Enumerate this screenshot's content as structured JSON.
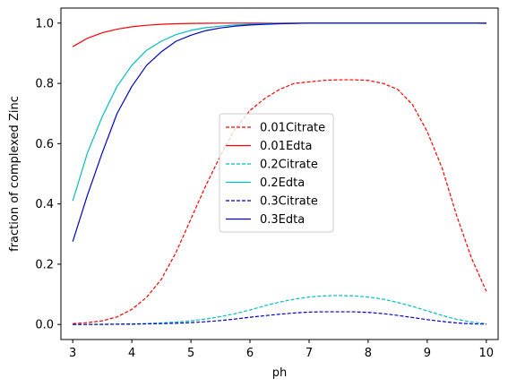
{
  "chart_data": {
    "type": "line",
    "xlabel": "ph",
    "ylabel": "fraction of complexed Zinc",
    "xlim": [
      2.8,
      10.2
    ],
    "ylim": [
      -0.05,
      1.05
    ],
    "xticks": [
      3,
      4,
      5,
      6,
      7,
      8,
      9,
      10
    ],
    "yticks": [
      0.0,
      0.2,
      0.4,
      0.6,
      0.8,
      1.0
    ],
    "xtick_labels": [
      "3",
      "4",
      "5",
      "6",
      "7",
      "8",
      "9",
      "10"
    ],
    "ytick_labels": [
      "0.0",
      "0.2",
      "0.4",
      "0.6",
      "0.8",
      "1.0"
    ],
    "grid": false,
    "legend_position": "center",
    "x": [
      3.0,
      3.25,
      3.5,
      3.75,
      4.0,
      4.25,
      4.5,
      4.75,
      5.0,
      5.25,
      5.5,
      5.75,
      6.0,
      6.25,
      6.5,
      6.75,
      7.0,
      7.25,
      7.5,
      7.75,
      8.0,
      8.25,
      8.5,
      8.75,
      9.0,
      9.25,
      9.5,
      9.75,
      10.0
    ],
    "series": [
      {
        "name": "0.01Citrate",
        "color": "#ff0000",
        "dash": true,
        "values": [
          0.003,
          0.006,
          0.012,
          0.025,
          0.05,
          0.09,
          0.15,
          0.24,
          0.35,
          0.46,
          0.56,
          0.65,
          0.71,
          0.75,
          0.78,
          0.8,
          0.805,
          0.81,
          0.812,
          0.812,
          0.81,
          0.8,
          0.78,
          0.73,
          0.64,
          0.52,
          0.36,
          0.22,
          0.11
        ]
      },
      {
        "name": "0.01Edta",
        "color": "#ff0000",
        "dash": false,
        "values": [
          0.922,
          0.95,
          0.968,
          0.98,
          0.988,
          0.993,
          0.996,
          0.998,
          0.999,
          0.9995,
          1.0,
          1.0,
          1.0,
          1.0,
          1.0,
          1.0,
          1.0,
          1.0,
          1.0,
          1.0,
          1.0,
          1.0,
          1.0,
          1.0,
          1.0,
          1.0,
          1.0,
          1.0,
          0.999
        ]
      },
      {
        "name": "0.2Citrate",
        "color": "#00bfbf",
        "dash": true,
        "values": [
          0.0,
          0.0,
          0.001,
          0.001,
          0.002,
          0.003,
          0.005,
          0.008,
          0.012,
          0.018,
          0.026,
          0.036,
          0.048,
          0.062,
          0.074,
          0.084,
          0.091,
          0.095,
          0.096,
          0.095,
          0.091,
          0.084,
          0.073,
          0.06,
          0.045,
          0.03,
          0.017,
          0.008,
          0.003
        ]
      },
      {
        "name": "0.2Edta",
        "color": "#00bfbf",
        "dash": false,
        "values": [
          0.41,
          0.57,
          0.69,
          0.79,
          0.86,
          0.91,
          0.94,
          0.962,
          0.976,
          0.985,
          0.99,
          0.994,
          0.996,
          0.998,
          0.999,
          0.9995,
          1.0,
          1.0,
          1.0,
          1.0,
          1.0,
          1.0,
          1.0,
          1.0,
          1.0,
          1.0,
          1.0,
          1.0,
          1.0
        ]
      },
      {
        "name": "0.3Citrate",
        "color": "#0000cc",
        "dash": true,
        "values": [
          0.0,
          0.0,
          0.0,
          0.001,
          0.001,
          0.002,
          0.003,
          0.004,
          0.006,
          0.009,
          0.013,
          0.018,
          0.024,
          0.029,
          0.034,
          0.038,
          0.041,
          0.042,
          0.042,
          0.042,
          0.04,
          0.036,
          0.03,
          0.023,
          0.016,
          0.01,
          0.005,
          0.002,
          0.001
        ]
      },
      {
        "name": "0.3Edta",
        "color": "#0000cc",
        "dash": false,
        "values": [
          0.275,
          0.43,
          0.57,
          0.7,
          0.79,
          0.86,
          0.905,
          0.94,
          0.96,
          0.975,
          0.984,
          0.99,
          0.994,
          0.996,
          0.998,
          0.999,
          1.0,
          1.0,
          1.0,
          1.0,
          1.0,
          1.0,
          1.0,
          1.0,
          1.0,
          1.0,
          1.0,
          1.0,
          1.0
        ]
      }
    ]
  }
}
